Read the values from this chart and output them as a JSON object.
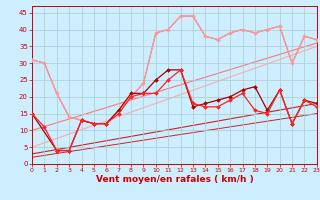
{
  "background_color": "#cceeff",
  "grid_color": "#aacccc",
  "xlabel": "Vent moyen/en rafales ( km/h )",
  "xlabel_color": "#cc0000",
  "xlabel_fontsize": 6.5,
  "tick_color": "#cc0000",
  "ylim": [
    0,
    47
  ],
  "xlim": [
    0,
    23
  ],
  "yticks": [
    0,
    5,
    10,
    15,
    20,
    25,
    30,
    35,
    40,
    45
  ],
  "xticks": [
    0,
    1,
    2,
    3,
    4,
    5,
    6,
    7,
    8,
    9,
    10,
    11,
    12,
    13,
    14,
    15,
    16,
    17,
    18,
    19,
    20,
    21,
    22,
    23
  ],
  "line_pink_x": [
    0,
    1,
    2,
    3,
    4,
    5,
    6,
    7,
    8,
    9,
    10,
    11,
    12,
    13,
    14,
    15,
    16,
    17,
    18,
    19,
    20,
    21,
    22,
    23
  ],
  "line_pink_y": [
    31,
    30,
    21,
    14,
    13,
    12,
    12,
    16,
    20,
    24,
    39,
    40,
    44,
    44,
    38,
    37,
    39,
    40,
    39,
    40,
    41,
    30,
    38,
    37
  ],
  "line_pink_color": "#ff9999",
  "line_pink_linewidth": 0.8,
  "line_pink_markersize": 2.0,
  "line_midred_x": [
    0,
    1,
    2,
    3,
    4,
    5,
    6,
    7,
    8,
    9,
    10,
    11,
    12,
    13,
    14,
    15,
    16,
    17,
    18,
    19,
    20,
    21,
    22,
    23
  ],
  "line_midred_y": [
    31,
    30,
    21,
    14,
    13,
    12,
    12,
    16,
    20,
    24,
    39,
    40,
    44,
    44,
    38,
    37,
    39,
    40,
    39,
    40,
    41,
    30,
    38,
    37
  ],
  "line_midred_color": "#ff5555",
  "line_midred_linewidth": 0.8,
  "line_red1_x": [
    0,
    1,
    2,
    3,
    4,
    5,
    6,
    7,
    8,
    9,
    10,
    11,
    12,
    13,
    14,
    15,
    16,
    17,
    18,
    19,
    20,
    21,
    22,
    23
  ],
  "line_red1_y": [
    15,
    11,
    4,
    4,
    13,
    12,
    12,
    15,
    20,
    21,
    21,
    25,
    28,
    18,
    17,
    17,
    19,
    21,
    16,
    15,
    22,
    12,
    19,
    17
  ],
  "line_red1_color": "#ff2222",
  "line_red1_linewidth": 0.9,
  "line_red1_markersize": 2.0,
  "line_darkred_x": [
    0,
    2,
    3,
    4,
    5,
    6,
    7,
    8,
    9,
    10,
    11,
    12,
    13,
    14,
    15,
    16,
    17,
    18,
    19,
    20,
    21,
    22,
    23
  ],
  "line_darkred_y": [
    15,
    4,
    4,
    13,
    12,
    12,
    16,
    21,
    21,
    25,
    28,
    28,
    17,
    18,
    19,
    20,
    22,
    23,
    16,
    22,
    12,
    19,
    18
  ],
  "line_darkred_color": "#aa0000",
  "line_darkred_linewidth": 0.9,
  "line_darkred_markersize": 2.0,
  "trend_lines": [
    {
      "x": [
        0,
        23
      ],
      "y": [
        10,
        36
      ],
      "color": "#ff7777",
      "lw": 0.8
    },
    {
      "x": [
        0,
        23
      ],
      "y": [
        5,
        35
      ],
      "color": "#ffaaaa",
      "lw": 0.8
    },
    {
      "x": [
        0,
        23
      ],
      "y": [
        3,
        18
      ],
      "color": "#cc2222",
      "lw": 0.8
    },
    {
      "x": [
        0,
        23
      ],
      "y": [
        2,
        15
      ],
      "color": "#cc2222",
      "lw": 0.7
    }
  ]
}
